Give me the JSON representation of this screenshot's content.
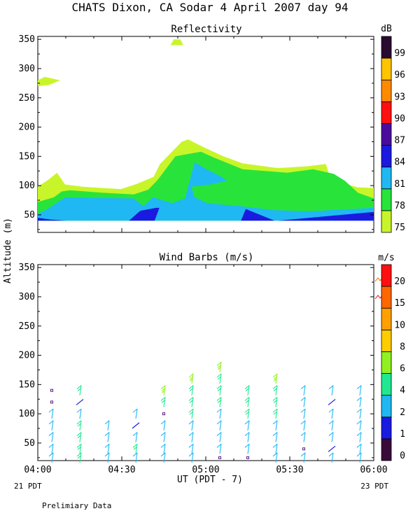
{
  "figure": {
    "title": "CHATS Dixon, CA  Sodar   4 April 2007   day  94",
    "ylabel": "Altitude (m)",
    "xlabel": "UT  (PDT - 7)",
    "left_note": "21 PDT",
    "right_note": "23 PDT",
    "footer": "Prelimiary Data"
  },
  "chart_data": [
    {
      "type": "heatmap",
      "title": "Reflectivity",
      "colorbar_unit": "dB",
      "xlim": [
        "04:00",
        "06:00"
      ],
      "ylim": [
        20,
        355
      ],
      "x_ticks": [
        "04:00",
        "04:30",
        "05:00",
        "05:30",
        "06:00"
      ],
      "y_ticks": [
        50,
        100,
        150,
        200,
        250,
        300,
        350
      ],
      "levels": [
        {
          "label": "75",
          "color": "#c8f52a"
        },
        {
          "label": "78",
          "color": "#28e43a"
        },
        {
          "label": "81",
          "color": "#20b8f2"
        },
        {
          "label": "84",
          "color": "#1a1ae0"
        },
        {
          "label": "87",
          "color": "#4a0c9c"
        },
        {
          "label": "90",
          "color": "#ff1010"
        },
        {
          "label": "93",
          "color": "#ff8a00"
        },
        {
          "label": "96",
          "color": "#ffc400"
        },
        {
          "label": "99",
          "color": "#2a0a30"
        }
      ],
      "regions": [
        {
          "level": "75",
          "points": [
            [
              4.0,
              40
            ],
            [
              4.0,
              98
            ],
            [
              4.33,
              110
            ],
            [
              4.6,
              122
            ],
            [
              4.85,
              102
            ],
            [
              5.4,
              98
            ],
            [
              6.6,
              94
            ],
            [
              7.1,
              103
            ],
            [
              7.62,
              115
            ],
            [
              7.82,
              137
            ],
            [
              8.5,
              175
            ],
            [
              8.7,
              179
            ],
            [
              9.2,
              165
            ],
            [
              9.8,
              150
            ],
            [
              10.4,
              138
            ],
            [
              11.5,
              130
            ],
            [
              12.4,
              133
            ],
            [
              13.0,
              137
            ],
            [
              13.1,
              120
            ],
            [
              13.5,
              105
            ],
            [
              14.0,
              97
            ],
            [
              14.5,
              96
            ],
            [
              14.5,
              70
            ],
            [
              13.0,
              65
            ],
            [
              11.0,
              55
            ],
            [
              9.2,
              42
            ],
            [
              7.8,
              40
            ],
            [
              5.0,
              40
            ]
          ]
        },
        {
          "level": "75",
          "points": [
            [
              10.6,
              96
            ],
            [
              11.5,
              102
            ],
            [
              12.3,
              106
            ],
            [
              12.8,
              112
            ],
            [
              13.15,
              108
            ],
            [
              12.9,
              98
            ],
            [
              12.1,
              92
            ],
            [
              11.3,
              90
            ]
          ]
        },
        {
          "level": "75",
          "points": [
            [
              4.0,
              280
            ],
            [
              4.22,
              286
            ],
            [
              4.7,
              280
            ],
            [
              4.35,
              272
            ],
            [
              4.0,
              270
            ]
          ]
        },
        {
          "level": "75",
          "points": [
            [
              8.15,
              340
            ],
            [
              8.25,
              350
            ],
            [
              8.45,
              350
            ],
            [
              8.55,
              340
            ]
          ]
        },
        {
          "level": "78",
          "points": [
            [
              4.0,
              40
            ],
            [
              4.0,
              72
            ],
            [
              4.5,
              80
            ],
            [
              4.75,
              90
            ],
            [
              5.0,
              92
            ],
            [
              6.0,
              88
            ],
            [
              7.0,
              85
            ],
            [
              7.45,
              93
            ],
            [
              7.75,
              110
            ],
            [
              8.3,
              150
            ],
            [
              9.1,
              158
            ],
            [
              9.5,
              148
            ],
            [
              10.4,
              128
            ],
            [
              11.8,
              122
            ],
            [
              12.6,
              128
            ],
            [
              13.25,
              120
            ],
            [
              13.6,
              108
            ],
            [
              14.0,
              88
            ],
            [
              14.5,
              78
            ],
            [
              14.5,
              42
            ],
            [
              13.0,
              40
            ],
            [
              8.2,
              40
            ]
          ]
        },
        {
          "level": "81",
          "points": [
            [
              4.0,
              40
            ],
            [
              4.0,
              52
            ],
            [
              4.3,
              60
            ],
            [
              4.85,
              80
            ],
            [
              7.0,
              78
            ],
            [
              7.3,
              65
            ],
            [
              7.6,
              80
            ],
            [
              8.2,
              70
            ],
            [
              8.6,
              78
            ],
            [
              8.9,
              140
            ],
            [
              9.2,
              130
            ],
            [
              9.75,
              115
            ],
            [
              9.9,
              108
            ],
            [
              9.4,
              102
            ],
            [
              8.8,
              98
            ],
            [
              8.9,
              80
            ],
            [
              9.3,
              70
            ],
            [
              10.3,
              65
            ],
            [
              11.4,
              58
            ],
            [
              12.5,
              56
            ],
            [
              14.5,
              62
            ],
            [
              14.5,
              40
            ]
          ]
        },
        {
          "level": "84",
          "points": [
            [
              4.0,
              40
            ],
            [
              4.0,
              45
            ],
            [
              4.4,
              42
            ],
            [
              4.9,
              40
            ]
          ]
        },
        {
          "level": "84",
          "points": [
            [
              6.85,
              40
            ],
            [
              7.2,
              57
            ],
            [
              7.7,
              62
            ],
            [
              7.8,
              62
            ],
            [
              7.65,
              40
            ]
          ]
        },
        {
          "level": "84",
          "points": [
            [
              10.35,
              40
            ],
            [
              10.5,
              60
            ],
            [
              11.4,
              40
            ]
          ]
        },
        {
          "level": "84",
          "points": [
            [
              11.5,
              40
            ],
            [
              14.5,
              55
            ],
            [
              14.5,
              40
            ]
          ]
        }
      ]
    },
    {
      "type": "scatter",
      "title": "Wind Barbs (m/s)",
      "colorbar_unit": "m/s",
      "xlim": [
        "04:00",
        "06:00"
      ],
      "ylim": [
        20,
        355
      ],
      "x_ticks": [
        "04:00",
        "04:30",
        "05:00",
        "05:30",
        "06:00"
      ],
      "y_ticks": [
        50,
        100,
        150,
        200,
        250,
        300,
        350
      ],
      "levels": [
        {
          "label": "0",
          "color": "#3a0a3a"
        },
        {
          "label": "1",
          "color": "#1a1ae0"
        },
        {
          "label": "2",
          "color": "#20b8f2"
        },
        {
          "label": "4",
          "color": "#20e890"
        },
        {
          "label": "6",
          "color": "#90f020"
        },
        {
          "label": "8",
          "color": "#ffcc00"
        },
        {
          "label": "10",
          "color": "#ffa000"
        },
        {
          "label": "15",
          "color": "#ff6600"
        },
        {
          "label": "20",
          "color": "#ff1010"
        }
      ],
      "barb_rows_m": [
        25,
        40,
        60,
        80,
        100,
        120,
        140,
        160,
        180
      ],
      "barbs": [
        {
          "x": "04:05",
          "speeds": [
            2.5,
            3.5,
            3.5,
            2.5,
            2.5,
            0.3,
            0.3
          ]
        },
        {
          "x": "04:15",
          "speeds": [
            4,
            4,
            4.5,
            4,
            2,
            1,
            4
          ]
        },
        {
          "x": "04:25",
          "speeds": [
            3.5,
            3.5,
            3.5,
            2
          ]
        },
        {
          "x": "04:35",
          "speeds": [
            3.5,
            4,
            3.5,
            1.5,
            2.5
          ]
        },
        {
          "x": "04:45",
          "speeds": [
            3,
            3.5,
            3.5,
            3.5,
            0.2,
            4.5,
            6
          ]
        },
        {
          "x": "04:55",
          "speeds": [
            2.5,
            3,
            3.5,
            3.5,
            4,
            4.5,
            5,
            6
          ]
        },
        {
          "x": "05:05",
          "speeds": [
            0.2,
            3,
            2,
            3,
            3.5,
            4.5,
            5,
            5.5,
            6.5
          ]
        },
        {
          "x": "05:15",
          "speeds": [
            0.2,
            3.5,
            3.5,
            3.5,
            4.5,
            5.5,
            5.5
          ]
        },
        {
          "x": "05:25",
          "speeds": [
            2.5,
            3,
            3.5,
            3.5,
            4.5,
            4.5,
            5,
            6.5
          ]
        },
        {
          "x": "05:35",
          "speeds": [
            2.5,
            0.2,
            3.5,
            3.5,
            3.5,
            2.5,
            3
          ]
        },
        {
          "x": "05:45",
          "speeds": [
            2,
            1.5,
            2.5,
            3,
            2,
            1.5,
            3
          ]
        },
        {
          "x": "05:55",
          "speeds": [
            2.5,
            2,
            2.5,
            3,
            2.5,
            3,
            3.5
          ]
        }
      ],
      "annotations": [
        {
          "x": "06:00",
          "y": 330,
          "speed": 15
        },
        {
          "x": "06:00",
          "y": 300,
          "speed": 20
        }
      ]
    }
  ]
}
